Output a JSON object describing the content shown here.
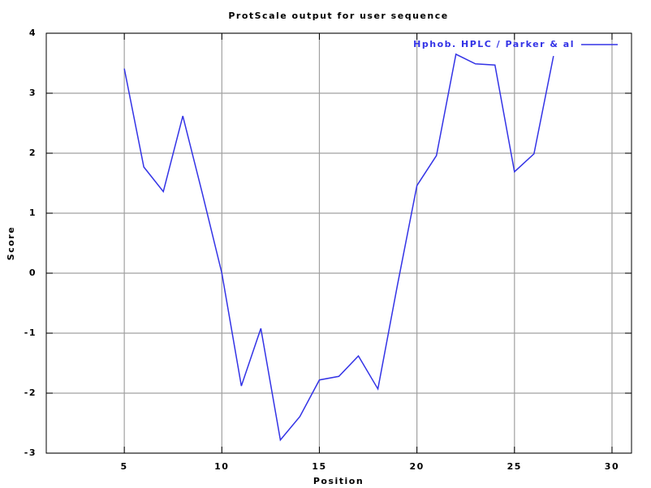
{
  "chart_data": {
    "type": "line",
    "title": "ProtScale output for user sequence",
    "x_label": "Position",
    "y_label": "Score",
    "x": [
      5,
      6,
      7,
      8,
      9,
      10,
      11,
      12,
      13,
      14,
      15,
      16,
      17,
      18,
      19,
      20,
      21,
      22,
      23,
      24,
      25,
      26,
      27
    ],
    "series": [
      {
        "name": "Hphob. HPLC / Parker & al",
        "color": "#3333e6",
        "values": [
          3.41,
          1.77,
          1.36,
          2.62,
          1.33,
          0.0,
          -1.88,
          -0.92,
          -2.78,
          -2.39,
          -1.78,
          -1.72,
          -1.38,
          -1.93,
          -0.2,
          1.46,
          1.96,
          3.65,
          3.49,
          3.47,
          1.69,
          1.99,
          3.62
        ]
      }
    ],
    "xlim": [
      1,
      31
    ],
    "ylim": [
      -3,
      4
    ],
    "xticks": [
      5,
      10,
      15,
      20,
      25,
      30
    ],
    "yticks": [
      -3,
      -2,
      -1,
      0,
      1,
      2,
      3,
      4
    ],
    "grid": true,
    "legend": "top-right"
  }
}
